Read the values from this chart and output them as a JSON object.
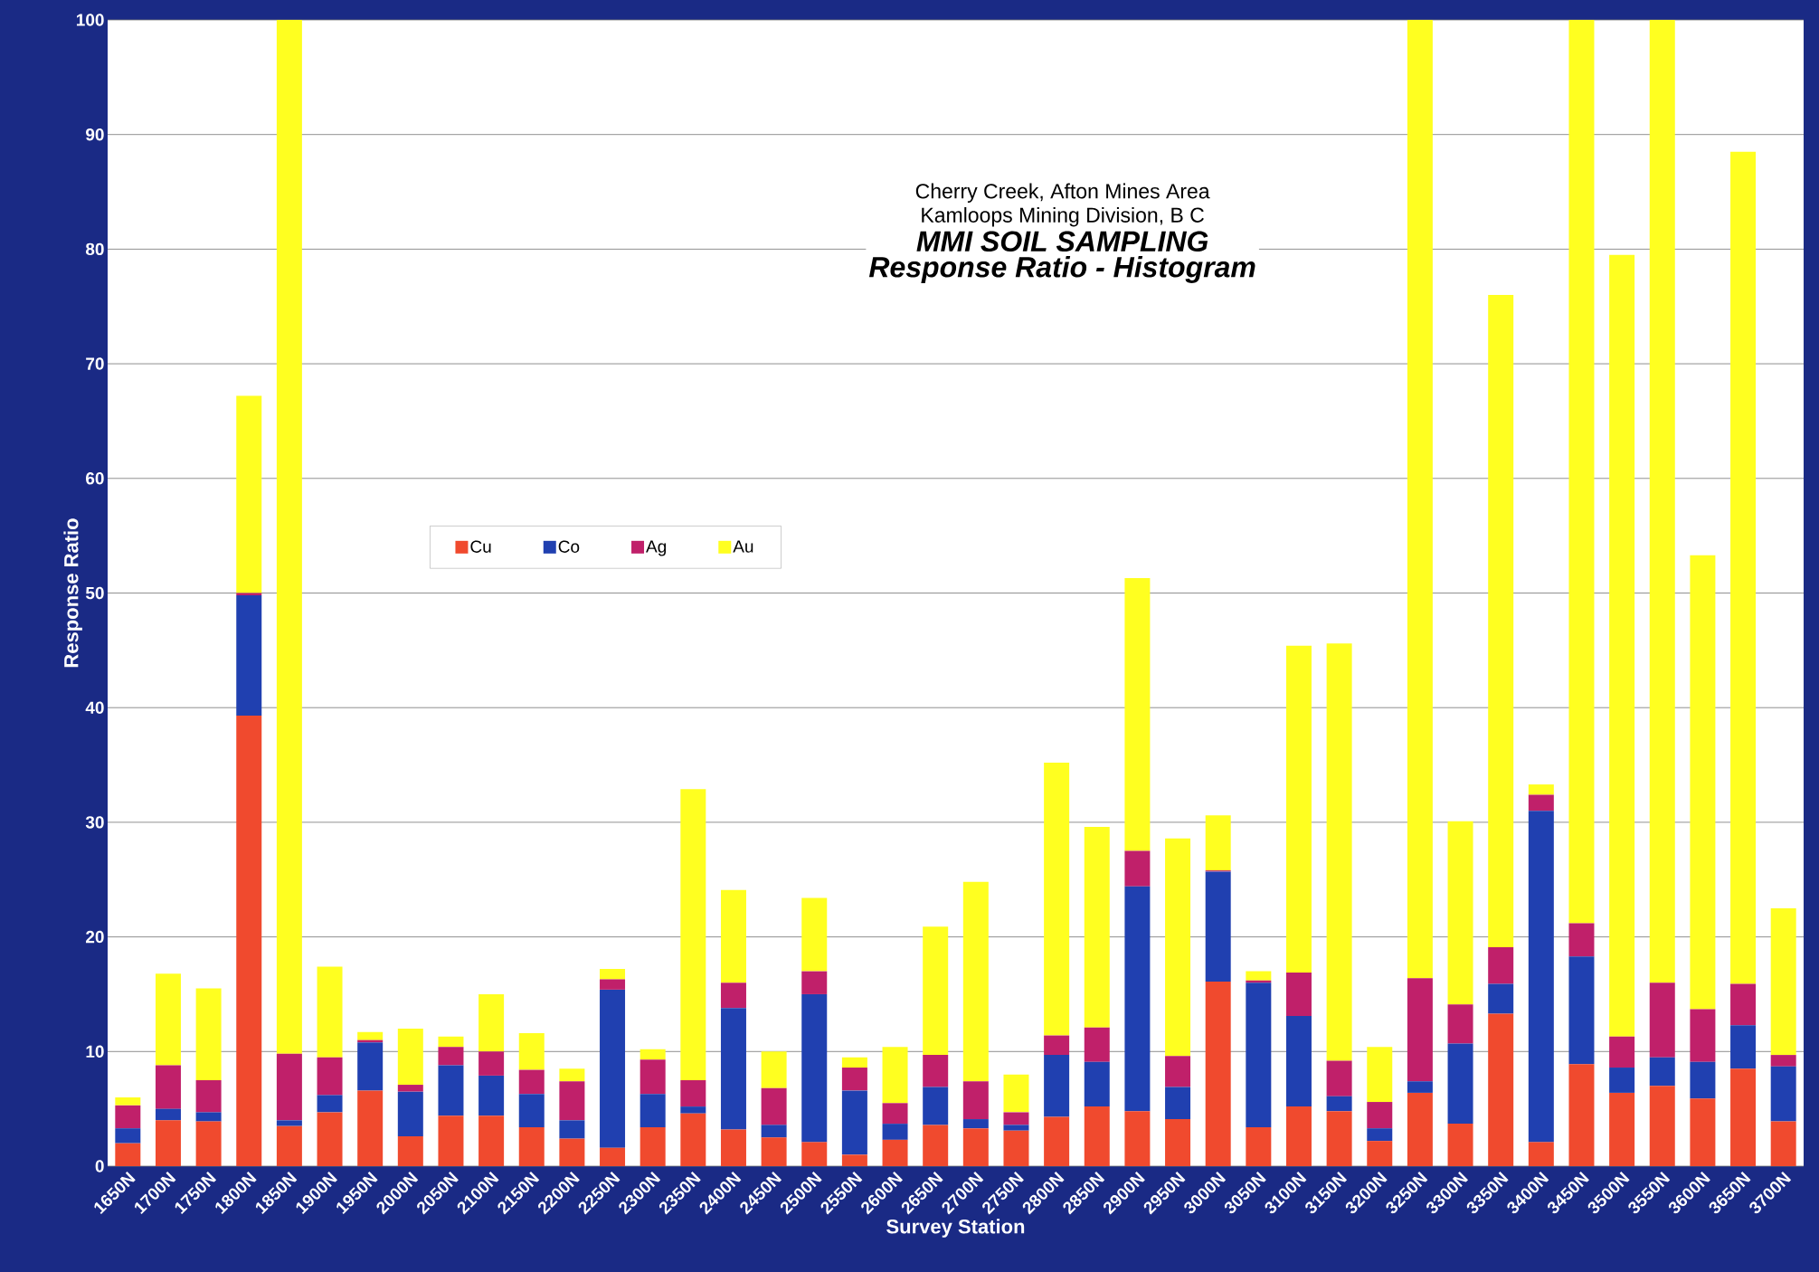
{
  "chart_data": {
    "type": "bar",
    "stacked": true,
    "xlabel": "Survey Station",
    "ylabel": "Response Ratio",
    "annotations": [
      "Cherry Creek, Afton Mines Area",
      "Kamloops Mining Division, B C",
      "MMI SOIL SAMPLING",
      "Response Ratio - Histogram"
    ],
    "categories": [
      "1650N",
      "1700N",
      "1750N",
      "1800N",
      "1850N",
      "1900N",
      "1950N",
      "2000N",
      "2050N",
      "2100N",
      "2150N",
      "2200N",
      "2250N",
      "2300N",
      "2350N",
      "2400N",
      "2450N",
      "2500N",
      "2550N",
      "2600N",
      "2650N",
      "2700N",
      "2750N",
      "2800N",
      "2850N",
      "2900N",
      "2950N",
      "3000N",
      "3050N",
      "3100N",
      "3150N",
      "3200N",
      "3250N",
      "3300N",
      "3350N",
      "3400N",
      "3450N",
      "3500N",
      "3550N",
      "3600N",
      "3650N",
      "3700N"
    ],
    "series": [
      {
        "name": "Cu",
        "color": "#f04a2e",
        "values": [
          2,
          4,
          3.9,
          39.3,
          3.5,
          4.7,
          6.6,
          2.6,
          4.4,
          4.4,
          3.4,
          2.4,
          1.6,
          3.4,
          4.6,
          3.2,
          2.5,
          2.1,
          1,
          2.3,
          3.6,
          3.3,
          3.1,
          4.3,
          5.2,
          4.8,
          4.1,
          16.1,
          3.4,
          5.2,
          4.8,
          2.2,
          6.4,
          3.7,
          13.3,
          2.1,
          8.9,
          6.4,
          7,
          5.9,
          8.5,
          3.9
        ]
      },
      {
        "name": "Co",
        "color": "#2040b0",
        "values": [
          1.3,
          1,
          0.8,
          10.5,
          0.5,
          1.5,
          4.2,
          3.9,
          4.4,
          3.5,
          2.9,
          1.6,
          13.8,
          2.9,
          0.6,
          10.6,
          1.1,
          12.9,
          5.6,
          1.4,
          3.3,
          0.8,
          0.5,
          5.4,
          3.9,
          19.6,
          2.8,
          9.6,
          12.6,
          7.9,
          1.3,
          1.1,
          1,
          7,
          2.6,
          28.9,
          9.4,
          2.2,
          2.5,
          3.2,
          3.8,
          4.8
        ]
      },
      {
        "name": "Ag",
        "color": "#c0206a",
        "values": [
          2,
          3.8,
          2.8,
          0.2,
          5.8,
          3.3,
          0.2,
          0.6,
          1.6,
          2.1,
          2.1,
          3.4,
          0.9,
          3,
          2.3,
          2.2,
          3.2,
          2,
          2,
          1.8,
          2.8,
          3.3,
          1.1,
          1.7,
          3,
          3.1,
          2.7,
          0.1,
          0.2,
          3.8,
          3.1,
          2.3,
          9,
          3.4,
          3.2,
          1.4,
          2.9,
          2.7,
          6.5,
          4.6,
          3.6,
          1
        ]
      },
      {
        "name": "Au",
        "color": "#ffff20",
        "values": [
          0.7,
          8,
          8,
          17.2,
          90.2,
          7.9,
          0.7,
          4.9,
          0.9,
          5,
          3.2,
          1.1,
          0.9,
          0.9,
          25.4,
          8.1,
          3.2,
          6.4,
          0.9,
          4.9,
          11.2,
          17.4,
          3.3,
          23.8,
          17.5,
          23.8,
          19,
          4.8,
          0.8,
          28.5,
          36.4,
          4.8,
          83.6,
          16,
          56.9,
          0.9,
          78.8,
          68.2,
          84,
          39.6,
          72.6,
          12.8
        ]
      }
    ],
    "ylim": [
      0,
      100
    ],
    "yticks": [
      0,
      10,
      20,
      30,
      40,
      50,
      60,
      70,
      80,
      90,
      100
    ],
    "grid": "y",
    "legend": "left"
  }
}
